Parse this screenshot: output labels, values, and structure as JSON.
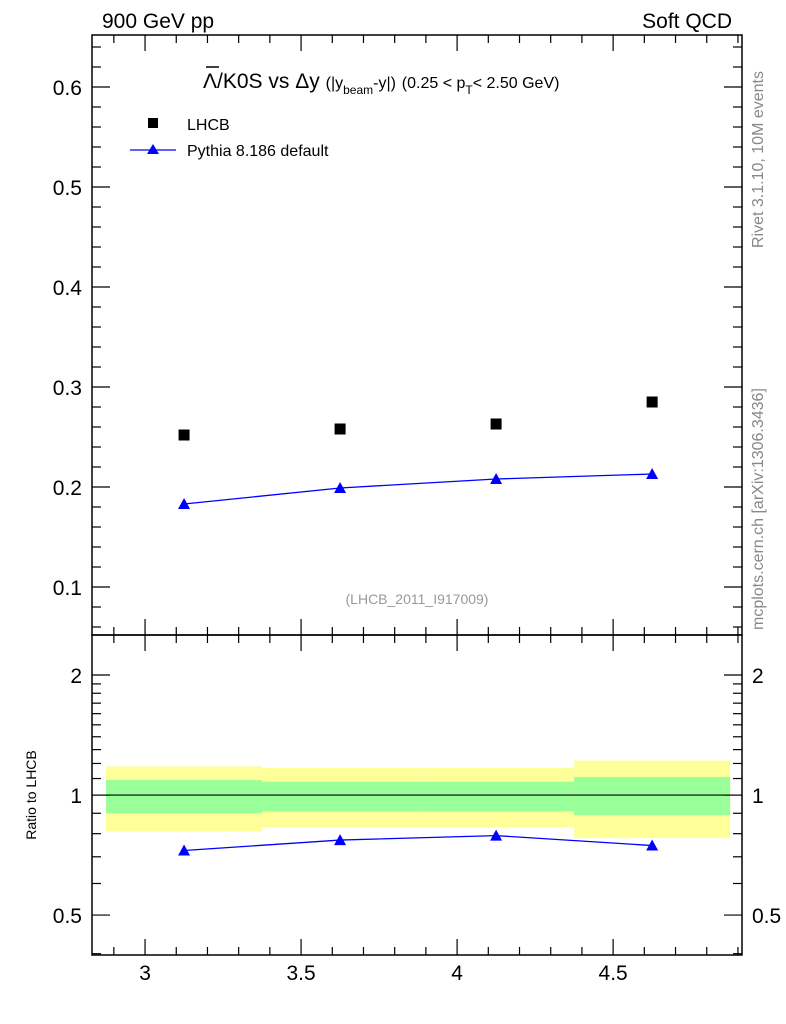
{
  "header": {
    "left": "900 GeV pp",
    "right": "Soft QCD"
  },
  "side_labels": {
    "top": "Rivet 3.1.10,  10M events",
    "bottom": "mcplots.cern.ch [arXiv:1306.3436]"
  },
  "chart_data": [
    {
      "type": "scatter",
      "title_main": "Λ/K0S vs Δy",
      "title_paren_a": "(|y",
      "title_sub_beam": "beam",
      "title_paren_b": "-y|)",
      "title_range_a": "(0.25 < p",
      "title_sub_t": "T",
      "title_range_b": "< 2.50 GeV)",
      "annotation": "(LHCB_2011_I917009)",
      "xlim": [
        2.83,
        4.913
      ],
      "ylim": [
        0.052,
        0.652
      ],
      "yticks": [
        "0.1",
        "0.2",
        "0.3",
        "0.4",
        "0.5",
        "0.6"
      ],
      "legend": [
        {
          "name": "LHCB",
          "marker": "square",
          "color": "#000000"
        },
        {
          "name": "Pythia 8.186 default",
          "marker": "triangle",
          "color": "#0000ff"
        }
      ],
      "legend_position": "top-left",
      "series": [
        {
          "name": "LHCB",
          "x": [
            3.125,
            3.625,
            4.125,
            4.625
          ],
          "y": [
            0.252,
            0.258,
            0.263,
            0.285
          ]
        },
        {
          "name": "Pythia 8.186 default",
          "x": [
            3.125,
            3.625,
            4.125,
            4.625
          ],
          "y": [
            0.183,
            0.199,
            0.208,
            0.213
          ]
        }
      ]
    },
    {
      "type": "line",
      "ylabel": "Ratio to LHCB",
      "yscale": "log",
      "ylim": [
        0.397,
        2.52
      ],
      "yticks": [
        "0.5",
        "1",
        "2"
      ],
      "xticks": [
        "3",
        "3.5",
        "4",
        "4.5"
      ],
      "bins": [
        [
          2.875,
          3.375
        ],
        [
          3.375,
          3.875
        ],
        [
          3.875,
          4.375
        ],
        [
          4.375,
          4.875
        ]
      ],
      "band_2sigma": [
        [
          0.81,
          1.18
        ],
        [
          0.83,
          1.17
        ],
        [
          0.83,
          1.17
        ],
        [
          0.78,
          1.22
        ]
      ],
      "band_1sigma": [
        [
          0.9,
          1.09
        ],
        [
          0.91,
          1.08
        ],
        [
          0.91,
          1.08
        ],
        [
          0.89,
          1.11
        ]
      ],
      "band_colors": {
        "outer": "#ffff99",
        "inner": "#99ff99"
      },
      "series": [
        {
          "name": "Pythia 8.186 default",
          "x": [
            3.125,
            3.625,
            4.125,
            4.625
          ],
          "y": [
            0.726,
            0.771,
            0.791,
            0.747
          ],
          "color": "#0000ff"
        }
      ]
    }
  ]
}
